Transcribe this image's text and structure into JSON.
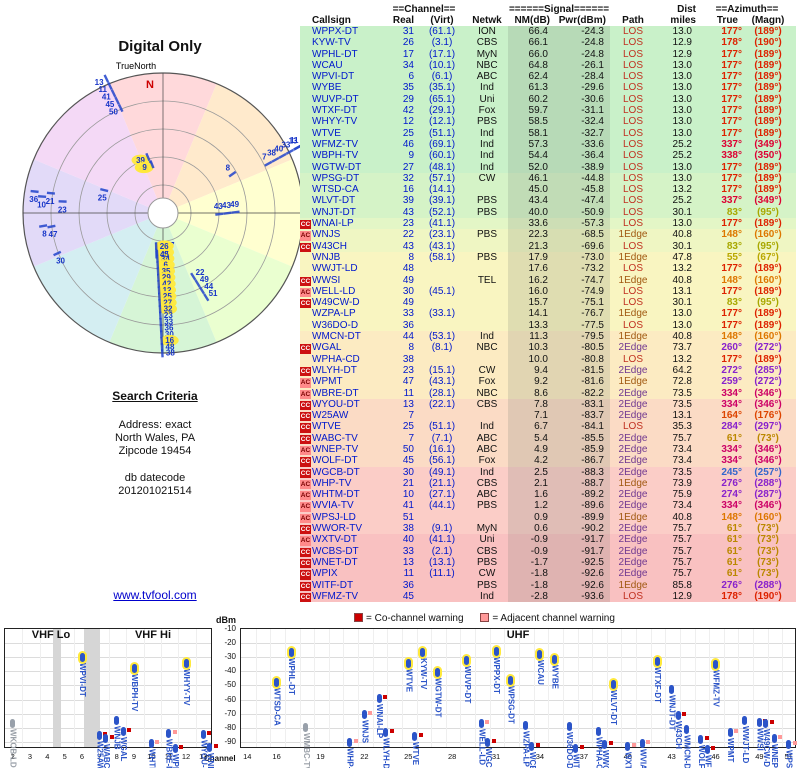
{
  "page": {
    "title_radar": "Digital Only",
    "true_north": "TrueNorth",
    "north_marker": "N",
    "link": "www.tvfool.com"
  },
  "search": {
    "heading": "Search Criteria",
    "address_line": "Address: exact",
    "city_line": "North Wales, PA",
    "zip_line": "Zipcode 19454",
    "datecode_label": "db datecode",
    "datecode": "201201021514"
  },
  "legend": {
    "co": "= Co-channel warning",
    "adj": "= Adjacent channel warning",
    "co_color": "#cc0000",
    "adj_color": "#ff9999"
  },
  "spectrum_labels": {
    "dbm": "dBm",
    "channel": "Channel",
    "vhf_lo": "VHF Lo",
    "vhf_hi": "VHF Hi",
    "uhf": "UHF"
  },
  "table": {
    "group_headers": {
      "channel": "==Channel==",
      "signal": "======Signal======",
      "dist": "Dist",
      "azimuth": "==Azimuth=="
    },
    "col_headers": {
      "callsign": "Callsign",
      "real": "Real",
      "virt": "(Virt)",
      "netwk": "Netwk",
      "nm": "NM(dB)",
      "pwr": "Pwr(dBm)",
      "path": "Path",
      "miles": "miles",
      "true": "True",
      "magn": "(Magn)"
    },
    "rows": [
      {
        "cs": "WPPX-DT",
        "ch": 31,
        "virt": "(61.1)",
        "net": "ION",
        "nm": 66.4,
        "pwr": -24.3,
        "path": "LOS",
        "dist": 13.0,
        "az": 177,
        "magn": 189,
        "azc": "#dd2200",
        "flag": ""
      },
      {
        "cs": "KYW-TV",
        "ch": 26,
        "virt": "(3.1)",
        "net": "CBS",
        "nm": 66.1,
        "pwr": -24.8,
        "path": "LOS",
        "dist": 12.9,
        "az": 178,
        "magn": 190,
        "azc": "#dd2200",
        "flag": ""
      },
      {
        "cs": "WPHL-DT",
        "ch": 17,
        "virt": "(17.1)",
        "net": "MyN",
        "nm": 66.0,
        "pwr": -24.8,
        "path": "LOS",
        "dist": 12.9,
        "az": 177,
        "magn": 189,
        "azc": "#dd2200",
        "flag": ""
      },
      {
        "cs": "WCAU",
        "ch": 34,
        "virt": "(10.1)",
        "net": "NBC",
        "nm": 64.8,
        "pwr": -26.1,
        "path": "LOS",
        "dist": 13.0,
        "az": 177,
        "magn": 189,
        "azc": "#dd2200",
        "flag": ""
      },
      {
        "cs": "WPVI-DT",
        "ch": 6,
        "virt": "(6.1)",
        "net": "ABC",
        "nm": 62.4,
        "pwr": -28.4,
        "path": "LOS",
        "dist": 13.0,
        "az": 177,
        "magn": 189,
        "azc": "#dd2200",
        "flag": ""
      },
      {
        "cs": "WYBE",
        "ch": 35,
        "virt": "(35.1)",
        "net": "Ind",
        "nm": 61.3,
        "pwr": -29.6,
        "path": "LOS",
        "dist": 13.0,
        "az": 177,
        "magn": 189,
        "azc": "#dd2200",
        "flag": ""
      },
      {
        "cs": "WUVP-DT",
        "ch": 29,
        "virt": "(65.1)",
        "net": "Uni",
        "nm": 60.2,
        "pwr": -30.6,
        "path": "LOS",
        "dist": 13.0,
        "az": 177,
        "magn": 189,
        "azc": "#dd2200",
        "flag": ""
      },
      {
        "cs": "WTXF-DT",
        "ch": 42,
        "virt": "(29.1)",
        "net": "Fox",
        "nm": 59.7,
        "pwr": -31.1,
        "path": "LOS",
        "dist": 13.0,
        "az": 177,
        "magn": 189,
        "azc": "#dd2200",
        "flag": ""
      },
      {
        "cs": "WHYY-TV",
        "ch": 12,
        "virt": "(12.1)",
        "net": "PBS",
        "nm": 58.5,
        "pwr": -32.4,
        "path": "LOS",
        "dist": 13.0,
        "az": 177,
        "magn": 189,
        "azc": "#dd2200",
        "flag": ""
      },
      {
        "cs": "WTVE",
        "ch": 25,
        "virt": "(51.1)",
        "net": "Ind",
        "nm": 58.1,
        "pwr": -32.7,
        "path": "LOS",
        "dist": 13.0,
        "az": 177,
        "magn": 189,
        "azc": "#dd2200",
        "flag": ""
      },
      {
        "cs": "WFMZ-TV",
        "ch": 46,
        "virt": "(69.1)",
        "net": "Ind",
        "nm": 57.3,
        "pwr": -33.6,
        "path": "LOS",
        "dist": 25.2,
        "az": 337,
        "magn": 349,
        "azc": "#dd0033",
        "flag": ""
      },
      {
        "cs": "WBPH-TV",
        "ch": 9,
        "virt": "(60.1)",
        "net": "Ind",
        "nm": 54.4,
        "pwr": -36.4,
        "path": "LOS",
        "dist": 25.2,
        "az": 338,
        "magn": 350,
        "azc": "#dd0033",
        "flag": ""
      },
      {
        "cs": "WGTW-DT",
        "ch": 27,
        "virt": "(48.1)",
        "net": "Ind",
        "nm": 52.0,
        "pwr": -38.9,
        "path": "LOS",
        "dist": 13.0,
        "az": 177,
        "magn": 189,
        "azc": "#dd2200",
        "flag": ""
      },
      {
        "cs": "WPSG-DT",
        "ch": 32,
        "virt": "(57.1)",
        "net": "CW",
        "nm": 46.1,
        "pwr": -44.8,
        "path": "LOS",
        "dist": 13.0,
        "az": 177,
        "magn": 189,
        "azc": "#dd2200",
        "flag": ""
      },
      {
        "cs": "WTSD-CA",
        "ch": 16,
        "virt": "(14.1)",
        "net": "",
        "nm": 45.0,
        "pwr": -45.8,
        "path": "LOS",
        "dist": 13.2,
        "az": 177,
        "magn": 189,
        "azc": "#dd2200",
        "flag": ""
      },
      {
        "cs": "WLVT-DT",
        "ch": 39,
        "virt": "(39.1)",
        "net": "PBS",
        "nm": 43.4,
        "pwr": -47.4,
        "path": "LOS",
        "dist": 25.2,
        "az": 337,
        "magn": 349,
        "azc": "#dd0033",
        "flag": ""
      },
      {
        "cs": "WNJT-DT",
        "ch": 43,
        "virt": "(52.1)",
        "net": "PBS",
        "nm": 40.0,
        "pwr": -50.9,
        "path": "LOS",
        "dist": 30.1,
        "az": 83,
        "magn": 95,
        "azc": "#a8a800",
        "flag": ""
      },
      {
        "cs": "WNAI-LP",
        "ch": 23,
        "virt": "(41.1)",
        "net": "",
        "nm": 33.6,
        "pwr": -57.3,
        "path": "LOS",
        "dist": 13.0,
        "az": 177,
        "magn": 189,
        "azc": "#dd2200",
        "flag": "CC"
      },
      {
        "cs": "WNJS",
        "ch": 22,
        "virt": "(23.1)",
        "net": "PBS",
        "nm": 22.3,
        "pwr": -68.5,
        "path": "1Edge",
        "dist": 40.8,
        "az": 148,
        "magn": 160,
        "azc": "#dd7700",
        "flag": "AC"
      },
      {
        "cs": "W43CH",
        "ch": 43,
        "virt": "(43.1)",
        "net": "",
        "nm": 21.3,
        "pwr": -69.6,
        "path": "LOS",
        "dist": 30.1,
        "az": 83,
        "magn": 95,
        "azc": "#a8a800",
        "flag": "CC"
      },
      {
        "cs": "WNJB",
        "ch": 8,
        "virt": "(58.1)",
        "net": "PBS",
        "nm": 17.9,
        "pwr": -73.0,
        "path": "1Edge",
        "dist": 47.8,
        "az": 55,
        "magn": 67,
        "azc": "#b8a800",
        "flag": ""
      },
      {
        "cs": "WWJT-LD",
        "ch": 48,
        "virt": "",
        "net": "",
        "nm": 17.6,
        "pwr": -73.2,
        "path": "LOS",
        "dist": 13.2,
        "az": 177,
        "magn": 189,
        "azc": "#dd2200",
        "flag": ""
      },
      {
        "cs": "WWSI",
        "ch": 49,
        "virt": "",
        "net": "TEL",
        "nm": 16.2,
        "pwr": -74.7,
        "path": "1Edge",
        "dist": 40.8,
        "az": 148,
        "magn": 160,
        "azc": "#dd7700",
        "flag": "CC"
      },
      {
        "cs": "WELL-LD",
        "ch": 30,
        "virt": "(45.1)",
        "net": "",
        "nm": 16.0,
        "pwr": -74.9,
        "path": "LOS",
        "dist": 13.1,
        "az": 177,
        "magn": 189,
        "azc": "#dd2200",
        "flag": "AC"
      },
      {
        "cs": "W49CW-D",
        "ch": 49,
        "virt": "",
        "net": "",
        "nm": 15.7,
        "pwr": -75.1,
        "path": "LOS",
        "dist": 30.1,
        "az": 83,
        "magn": 95,
        "azc": "#a8a800",
        "flag": "CC"
      },
      {
        "cs": "WZPA-LP",
        "ch": 33,
        "virt": "(33.1)",
        "net": "",
        "nm": 14.1,
        "pwr": -76.7,
        "path": "1Edge",
        "dist": 13.0,
        "az": 177,
        "magn": 189,
        "azc": "#dd2200",
        "flag": ""
      },
      {
        "cs": "W36DO-D",
        "ch": 36,
        "virt": "",
        "net": "",
        "nm": 13.3,
        "pwr": -77.5,
        "path": "LOS",
        "dist": 13.0,
        "az": 177,
        "magn": 189,
        "azc": "#dd2200",
        "flag": ""
      },
      {
        "cs": "WMCN-DT",
        "ch": 44,
        "virt": "(53.1)",
        "net": "Ind",
        "nm": 11.3,
        "pwr": -79.5,
        "path": "1Edge",
        "dist": 40.8,
        "az": 148,
        "magn": 160,
        "azc": "#dd7700",
        "flag": ""
      },
      {
        "cs": "WGAL",
        "ch": 8,
        "virt": "(8.1)",
        "net": "NBC",
        "nm": 10.3,
        "pwr": -80.5,
        "path": "2Edge",
        "dist": 73.7,
        "az": 260,
        "magn": 272,
        "azc": "#8822cc",
        "flag": "CC"
      },
      {
        "cs": "WPHA-CD",
        "ch": 38,
        "virt": "",
        "net": "",
        "nm": 10.0,
        "pwr": -80.8,
        "path": "LOS",
        "dist": 13.2,
        "az": 177,
        "magn": 189,
        "azc": "#dd2200",
        "flag": ""
      },
      {
        "cs": "WLYH-DT",
        "ch": 23,
        "virt": "(15.1)",
        "net": "CW",
        "nm": 9.4,
        "pwr": -81.5,
        "path": "2Edge",
        "dist": 64.2,
        "az": 272,
        "magn": 285,
        "azc": "#8822cc",
        "flag": "CC"
      },
      {
        "cs": "WPMT",
        "ch": 47,
        "virt": "(43.1)",
        "net": "Fox",
        "nm": 9.2,
        "pwr": -81.6,
        "path": "1Edge",
        "dist": 72.8,
        "az": 259,
        "magn": 272,
        "azc": "#8822cc",
        "flag": "AC"
      },
      {
        "cs": "WBRE-DT",
        "ch": 11,
        "virt": "(28.1)",
        "net": "NBC",
        "nm": 8.6,
        "pwr": -82.2,
        "path": "2Edge",
        "dist": 73.5,
        "az": 334,
        "magn": 346,
        "azc": "#cc0066",
        "flag": "AC"
      },
      {
        "cs": "WYOU-DT",
        "ch": 13,
        "virt": "(22.1)",
        "net": "CBS",
        "nm": 7.8,
        "pwr": -83.1,
        "path": "2Edge",
        "dist": 73.5,
        "az": 334,
        "magn": 346,
        "azc": "#cc0066",
        "flag": "CC"
      },
      {
        "cs": "W25AW",
        "ch": 7,
        "virt": "",
        "net": "",
        "nm": 7.1,
        "pwr": -83.7,
        "path": "2Edge",
        "dist": 13.1,
        "az": 164,
        "magn": 176,
        "azc": "#dd4400",
        "flag": "CC"
      },
      {
        "cs": "WTVE",
        "ch": 25,
        "virt": "(51.1)",
        "net": "Ind",
        "nm": 6.7,
        "pwr": -84.1,
        "path": "LOS",
        "dist": 35.3,
        "az": 284,
        "magn": 297,
        "azc": "#8822cc",
        "flag": "CC"
      },
      {
        "cs": "WABC-TV",
        "ch": 7,
        "virt": "(7.1)",
        "net": "ABC",
        "nm": 5.4,
        "pwr": -85.5,
        "path": "2Edge",
        "dist": 75.7,
        "az": 61,
        "magn": 73,
        "azc": "#bb8800",
        "flag": "CC"
      },
      {
        "cs": "WNEP-TV",
        "ch": 50,
        "virt": "(16.1)",
        "net": "ABC",
        "nm": 4.9,
        "pwr": -85.9,
        "path": "2Edge",
        "dist": 73.4,
        "az": 334,
        "magn": 346,
        "azc": "#cc0066",
        "flag": "AC"
      },
      {
        "cs": "WOLF-DT",
        "ch": 45,
        "virt": "(56.1)",
        "net": "Fox",
        "nm": 4.2,
        "pwr": -86.7,
        "path": "2Edge",
        "dist": 73.4,
        "az": 334,
        "magn": 346,
        "azc": "#cc0066",
        "flag": "CC"
      },
      {
        "cs": "WGCB-DT",
        "ch": 30,
        "virt": "(49.1)",
        "net": "Ind",
        "nm": 2.5,
        "pwr": -88.3,
        "path": "2Edge",
        "dist": 73.5,
        "az": 245,
        "magn": 257,
        "azc": "#3366cc",
        "flag": "CC"
      },
      {
        "cs": "WHP-TV",
        "ch": 21,
        "virt": "(21.1)",
        "net": "CBS",
        "nm": 2.1,
        "pwr": -88.7,
        "path": "1Edge",
        "dist": 73.9,
        "az": 276,
        "magn": 288,
        "azc": "#8822cc",
        "flag": "AC"
      },
      {
        "cs": "WHTM-DT",
        "ch": 10,
        "virt": "(27.1)",
        "net": "ABC",
        "nm": 1.6,
        "pwr": -89.2,
        "path": "2Edge",
        "dist": 75.9,
        "az": 274,
        "magn": 287,
        "azc": "#8822cc",
        "flag": "AC"
      },
      {
        "cs": "WVIA-TV",
        "ch": 41,
        "virt": "(44.1)",
        "net": "PBS",
        "nm": 1.2,
        "pwr": -89.6,
        "path": "2Edge",
        "dist": 73.4,
        "az": 334,
        "magn": 346,
        "azc": "#cc0066",
        "flag": "AC"
      },
      {
        "cs": "WPSJ-LD",
        "ch": 51,
        "virt": "",
        "net": "",
        "nm": 0.9,
        "pwr": -89.9,
        "path": "1Edge",
        "dist": 40.8,
        "az": 148,
        "magn": 160,
        "azc": "#dd7700",
        "flag": "AC"
      },
      {
        "cs": "WWOR-TV",
        "ch": 38,
        "virt": "(9.1)",
        "net": "MyN",
        "nm": 0.6,
        "pwr": -90.2,
        "path": "2Edge",
        "dist": 75.7,
        "az": 61,
        "magn": 73,
        "azc": "#bb8800",
        "flag": "CC"
      },
      {
        "cs": "WXTV-DT",
        "ch": 40,
        "virt": "(41.1)",
        "net": "Uni",
        "nm": -0.9,
        "pwr": -91.7,
        "path": "2Edge",
        "dist": 75.7,
        "az": 61,
        "magn": 73,
        "azc": "#bb8800",
        "flag": "AC"
      },
      {
        "cs": "WCBS-DT",
        "ch": 33,
        "virt": "(2.1)",
        "net": "CBS",
        "nm": -0.9,
        "pwr": -91.7,
        "path": "2Edge",
        "dist": 75.7,
        "az": 61,
        "magn": 73,
        "azc": "#bb8800",
        "flag": "CC"
      },
      {
        "cs": "WNET-DT",
        "ch": 13,
        "virt": "(13.1)",
        "net": "PBS",
        "nm": -1.7,
        "pwr": -92.5,
        "path": "2Edge",
        "dist": 75.7,
        "az": 61,
        "magn": 73,
        "azc": "#bb8800",
        "flag": "CC"
      },
      {
        "cs": "WPIX",
        "ch": 11,
        "virt": "(11.1)",
        "net": "CW",
        "nm": -1.8,
        "pwr": -92.6,
        "path": "2Edge",
        "dist": 75.7,
        "az": 61,
        "magn": 73,
        "azc": "#bb8800",
        "flag": "CC"
      },
      {
        "cs": "WITF-DT",
        "ch": 36,
        "virt": "",
        "net": "PBS",
        "nm": -1.8,
        "pwr": -92.6,
        "path": "1Edge",
        "dist": 85.8,
        "az": 276,
        "magn": 288,
        "azc": "#8822cc",
        "flag": "CC"
      },
      {
        "cs": "WFMZ-TV",
        "ch": 45,
        "virt": "",
        "net": "Ind",
        "nm": -2.8,
        "pwr": -93.6,
        "path": "LOS",
        "dist": 12.9,
        "az": 178,
        "magn": 190,
        "azc": "#dd2200",
        "flag": "CC"
      }
    ]
  },
  "chart_data": [
    {
      "id": "radar",
      "type": "scatter",
      "projection": "polar",
      "title": "Digital Only",
      "north_label": "TrueNorth",
      "angle_meaning": "true azimuth (deg)",
      "radius_meaning": "distance (miles), same-azimuth labels staggered outward",
      "point_label": "real RF channel number",
      "stations_from": "table.rows",
      "rings": 5,
      "highlight_rule": "stations with NM(dB) >= 43 get yellow highlight"
    },
    {
      "id": "spectrum",
      "type": "scatter",
      "ylabel": "dBm",
      "ylim": [
        -95,
        -10
      ],
      "y_ticks": [
        -10,
        -20,
        -30,
        -40,
        -50,
        -60,
        -70,
        -80,
        -90
      ],
      "bands": [
        {
          "label": "VHF Lo",
          "ch_min": 2,
          "ch_max": 6
        },
        {
          "label": "VHF Hi",
          "ch_min": 7,
          "ch_max": 13
        },
        {
          "label": "UHF",
          "ch_min": 14,
          "ch_max": 51
        }
      ],
      "x_ticks_vhf": [
        2,
        3,
        4,
        5,
        6,
        7,
        8,
        9,
        10,
        11,
        12,
        13
      ],
      "x_ticks_uhf": [
        14,
        16,
        19,
        22,
        25,
        28,
        31,
        34,
        37,
        40,
        43,
        46,
        49,
        51
      ],
      "points": "table.rows: x = real channel, y = Pwr(dBm), label = callsign",
      "extra_stations": [
        {
          "cs": "WKOB-LD",
          "ch": 2,
          "pwr": -75,
          "grey": true
        },
        {
          "cs": "WMBC-TV",
          "ch": 18,
          "pwr": -78,
          "grey": true
        }
      ]
    }
  ]
}
